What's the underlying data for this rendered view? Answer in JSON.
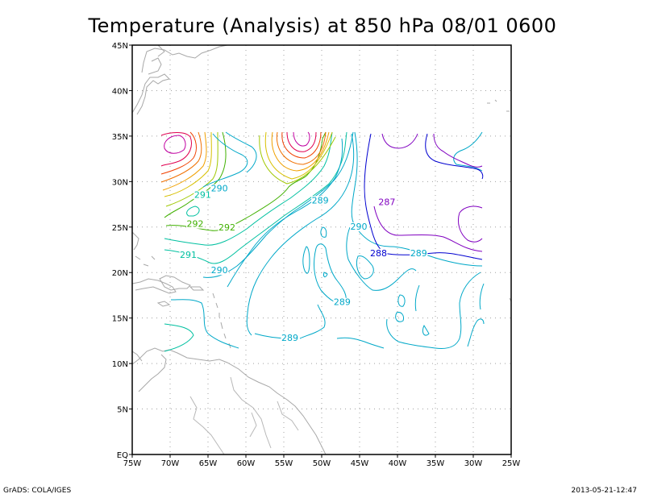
{
  "title": "Temperature (Analysis) at 850 hPa 08/01 0600",
  "footer": {
    "left": "GrADS: COLA/IGES",
    "right": "2013-05-21-12:47"
  },
  "axes": {
    "lon_ticks": [
      "75W",
      "70W",
      "65W",
      "60W",
      "55W",
      "50W",
      "45W",
      "40W",
      "35W",
      "30W",
      "25W"
    ],
    "lat_ticks": [
      "EQ",
      "5N",
      "10N",
      "15N",
      "20N",
      "25N",
      "30N",
      "35N",
      "40N",
      "45N"
    ]
  },
  "chart_data": {
    "type": "contour",
    "lon_range": [
      -75,
      -25
    ],
    "lat_range": [
      0,
      45
    ],
    "grid": true,
    "contour_labels": [
      {
        "text": "290",
        "lon": -63.5,
        "lat": 29.0,
        "color": "#00a8c8"
      },
      {
        "text": "291",
        "lon": -65.7,
        "lat": 28.3,
        "color": "#00c0a0"
      },
      {
        "text": "292",
        "lon": -66.7,
        "lat": 25.1,
        "color": "#40b000"
      },
      {
        "text": "292",
        "lon": -62.5,
        "lat": 24.7,
        "color": "#40b000"
      },
      {
        "text": "291",
        "lon": -67.6,
        "lat": 21.7,
        "color": "#00c0a0"
      },
      {
        "text": "290",
        "lon": -63.5,
        "lat": 20.0,
        "color": "#00a8c8"
      },
      {
        "text": "289",
        "lon": -50.2,
        "lat": 27.7,
        "color": "#00a8c8"
      },
      {
        "text": "287",
        "lon": -41.4,
        "lat": 27.5,
        "color": "#8000c0"
      },
      {
        "text": "290",
        "lon": -45.1,
        "lat": 24.8,
        "color": "#00a8c8"
      },
      {
        "text": "288",
        "lon": -42.5,
        "lat": 21.9,
        "color": "#0000d0"
      },
      {
        "text": "289",
        "lon": -37.2,
        "lat": 21.9,
        "color": "#00a8c8"
      },
      {
        "text": "289",
        "lon": -47.3,
        "lat": 16.5,
        "color": "#00a8c8"
      },
      {
        "text": "289",
        "lon": -54.2,
        "lat": 12.6,
        "color": "#00a8c8"
      }
    ]
  }
}
